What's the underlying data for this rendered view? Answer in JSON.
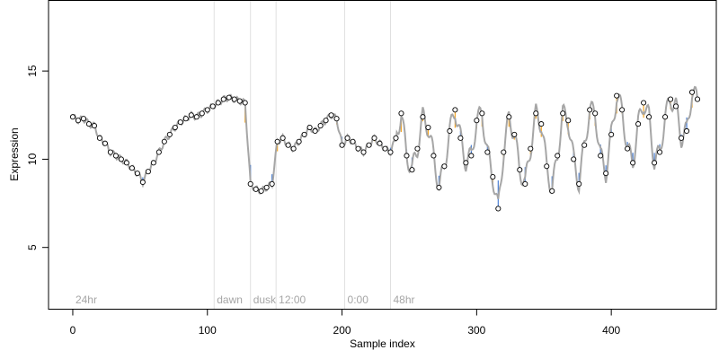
{
  "chart_data": {
    "type": "scatter",
    "title": "",
    "xlabel": "Sample index",
    "ylabel": "Expression",
    "xlim": [
      -18,
      478
    ],
    "ylim": [
      1.5,
      19
    ],
    "x_ticks": [
      0,
      100,
      200,
      300,
      400
    ],
    "y_ticks": [
      5,
      10,
      15
    ],
    "grid": false,
    "legend": "none",
    "colors": {
      "fit_line": "#a6a6a6",
      "residual_above": "#f5a623",
      "residual_below": "#4a7fd4",
      "point_fill": "#ffffff",
      "point_stroke": "#000000",
      "phase_line": "#e0e0e0",
      "phase_label": "#a6a6a6"
    },
    "phase_markers": [
      {
        "label": "24hr",
        "x": 0
      },
      {
        "label": "dawn",
        "x": 105
      },
      {
        "label": "dusk",
        "x": 132
      },
      {
        "label": "12:00",
        "x": 151
      },
      {
        "label": "0:00",
        "x": 202
      },
      {
        "label": "48hr",
        "x": 236
      }
    ],
    "series": [
      {
        "points": [
          [
            0,
            12.4
          ],
          [
            4,
            12.2
          ],
          [
            8,
            12.3
          ],
          [
            12,
            12.0
          ],
          [
            16,
            11.9
          ],
          [
            20,
            11.2
          ],
          [
            24,
            10.9
          ],
          [
            28,
            10.4
          ],
          [
            32,
            10.2
          ],
          [
            36,
            10.0
          ],
          [
            40,
            9.8
          ],
          [
            44,
            9.5
          ],
          [
            48,
            9.2
          ],
          [
            52,
            8.7
          ],
          [
            56,
            9.3
          ],
          [
            60,
            9.8
          ],
          [
            64,
            10.4
          ],
          [
            68,
            11.0
          ],
          [
            72,
            11.4
          ],
          [
            76,
            11.8
          ],
          [
            80,
            12.1
          ],
          [
            84,
            12.3
          ],
          [
            88,
            12.5
          ],
          [
            92,
            12.4
          ],
          [
            96,
            12.6
          ],
          [
            100,
            12.8
          ],
          [
            104,
            13.0
          ],
          [
            108,
            13.2
          ],
          [
            112,
            13.4
          ],
          [
            116,
            13.5
          ],
          [
            120,
            13.4
          ],
          [
            124,
            13.3
          ],
          [
            128,
            13.2
          ],
          [
            132,
            8.6
          ],
          [
            136,
            8.3
          ],
          [
            140,
            8.2
          ],
          [
            144,
            8.4
          ],
          [
            148,
            8.6
          ],
          [
            152,
            11.0
          ],
          [
            156,
            11.2
          ],
          [
            160,
            10.8
          ],
          [
            164,
            10.6
          ],
          [
            168,
            11.0
          ],
          [
            172,
            11.4
          ],
          [
            176,
            11.8
          ],
          [
            180,
            11.6
          ],
          [
            184,
            11.9
          ],
          [
            188,
            12.2
          ],
          [
            192,
            12.5
          ],
          [
            196,
            12.3
          ],
          [
            200,
            10.8
          ],
          [
            204,
            11.2
          ],
          [
            208,
            11.0
          ],
          [
            212,
            10.6
          ],
          [
            216,
            10.4
          ],
          [
            220,
            10.8
          ],
          [
            224,
            11.2
          ],
          [
            228,
            10.9
          ],
          [
            232,
            10.6
          ],
          [
            236,
            10.4
          ],
          [
            240,
            11.2
          ],
          [
            244,
            12.6
          ],
          [
            248,
            10.2
          ],
          [
            252,
            9.4
          ],
          [
            256,
            10.6
          ],
          [
            260,
            12.4
          ],
          [
            264,
            11.8
          ],
          [
            268,
            10.2
          ],
          [
            272,
            8.4
          ],
          [
            276,
            9.6
          ],
          [
            280,
            11.6
          ],
          [
            284,
            12.8
          ],
          [
            288,
            11.2
          ],
          [
            292,
            9.8
          ],
          [
            296,
            10.2
          ],
          [
            300,
            12.2
          ],
          [
            304,
            12.6
          ],
          [
            308,
            10.4
          ],
          [
            312,
            9.0
          ],
          [
            316,
            7.2
          ],
          [
            320,
            10.4
          ],
          [
            324,
            12.4
          ],
          [
            328,
            11.4
          ],
          [
            332,
            9.4
          ],
          [
            336,
            8.6
          ],
          [
            340,
            10.6
          ],
          [
            344,
            12.6
          ],
          [
            348,
            12.0
          ],
          [
            352,
            9.6
          ],
          [
            356,
            8.2
          ],
          [
            360,
            10.2
          ],
          [
            364,
            12.6
          ],
          [
            368,
            12.2
          ],
          [
            372,
            10.0
          ],
          [
            376,
            8.6
          ],
          [
            380,
            10.8
          ],
          [
            384,
            12.8
          ],
          [
            388,
            12.6
          ],
          [
            392,
            10.2
          ],
          [
            396,
            9.2
          ],
          [
            400,
            11.4
          ],
          [
            404,
            13.6
          ],
          [
            408,
            12.8
          ],
          [
            412,
            10.6
          ],
          [
            416,
            9.8
          ],
          [
            420,
            12.0
          ],
          [
            424,
            13.2
          ],
          [
            428,
            12.4
          ],
          [
            432,
            9.8
          ],
          [
            436,
            10.4
          ],
          [
            440,
            12.4
          ],
          [
            444,
            13.4
          ],
          [
            448,
            13.0
          ],
          [
            452,
            11.2
          ],
          [
            456,
            11.6
          ],
          [
            460,
            13.8
          ],
          [
            464,
            13.4
          ]
        ]
      }
    ]
  }
}
